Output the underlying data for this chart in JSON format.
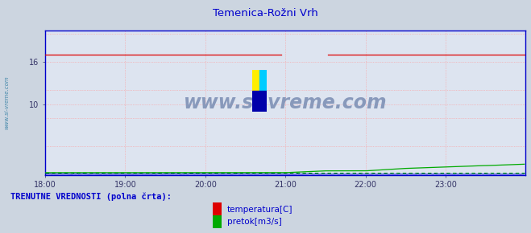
{
  "title": "Temenica-Rožni Vrh",
  "title_color": "#0000cc",
  "bg_color": "#ccd5e0",
  "plot_bg_color": "#dde4f0",
  "grid_color": "#ff9999",
  "watermark": "www.si-vreme.com",
  "watermark_color": "#8899bb",
  "sidebar_text": "www.si-vreme.com",
  "sidebar_color": "#4488aa",
  "xlim": [
    0,
    360
  ],
  "ylim": [
    0,
    20.5
  ],
  "xtick_positions": [
    0,
    60,
    120,
    180,
    240,
    300
  ],
  "xtick_labels": [
    "18:00",
    "19:00",
    "20:00",
    "21:00",
    "22:00",
    "23:00"
  ],
  "ytick_positions": [
    10,
    16
  ],
  "ytick_labels": [
    "10",
    "16"
  ],
  "temp_value": 17.1,
  "temp_color": "#dd0000",
  "pretok_color": "#00aa00",
  "pretok_dashed_color": "#00aa00",
  "blue_line_color": "#0000cc",
  "legend_label1": "temperatura[C]",
  "legend_label2": "pretok[m3/s]",
  "legend_color1": "#dd0000",
  "legend_color2": "#00aa00",
  "footer_text": "TRENUTNE VREDNOSTI (polna črta):",
  "footer_color": "#0000cc",
  "spine_color": "#0000cc",
  "tick_color": "#333366",
  "num_points": 360
}
